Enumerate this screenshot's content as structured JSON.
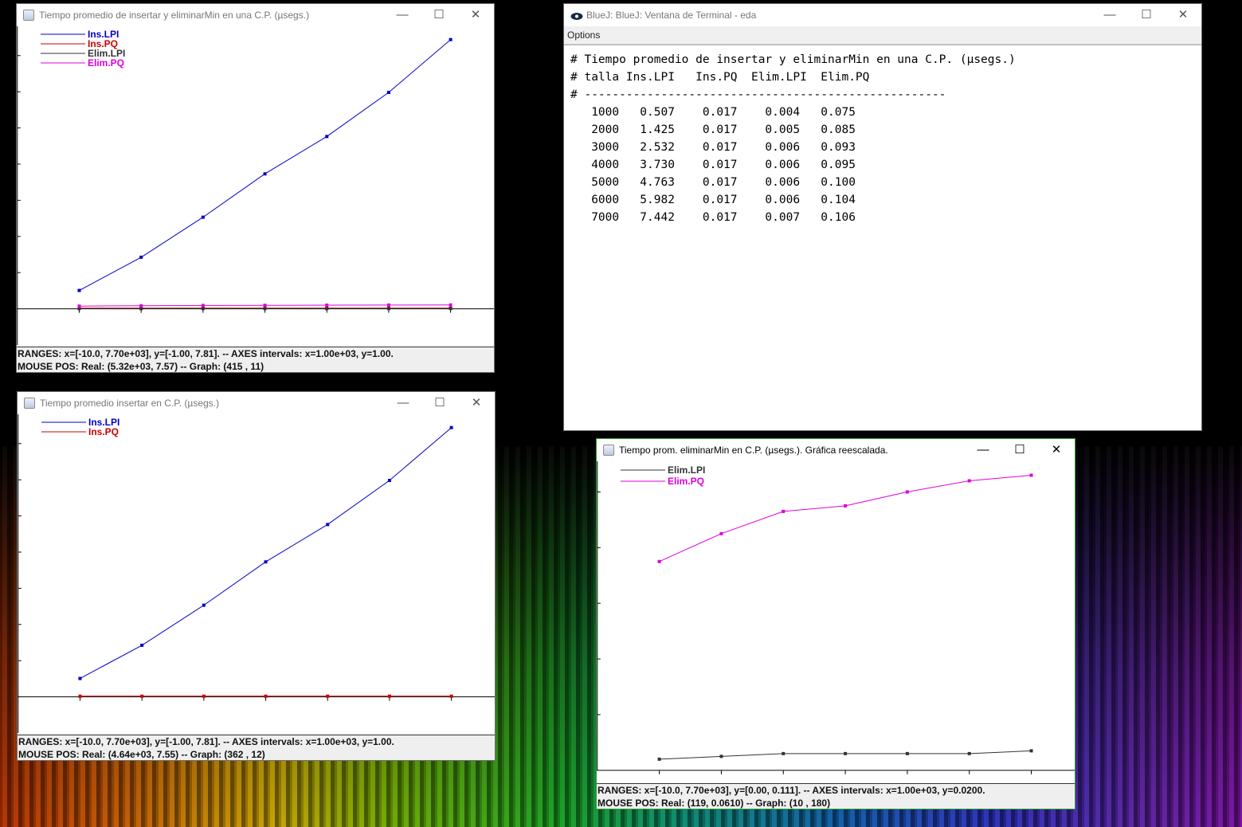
{
  "win1": {
    "title": "Tiempo promedio de insertar y eliminarMin en una C.P. (µsegs.)",
    "legend": [
      {
        "name": "Ins.LPI",
        "color": "#0000cc"
      },
      {
        "name": "Ins.PQ",
        "color": "#cc0000"
      },
      {
        "name": "Elim.LPI",
        "color": "#333333"
      },
      {
        "name": "Elim.PQ",
        "color": "#dd00dd"
      }
    ],
    "status_line1": "RANGES: x=[-10.0, 7.70e+03],  y=[-1.00, 7.81]. -- AXES intervals: x=1.00e+03, y=1.00.",
    "status_line2": "MOUSE POS:  Real: (5.32e+03, 7.57)  --  Graph: (415 , 11)"
  },
  "win2": {
    "title": "Tiempo promedio insertar en C.P. (µsegs.)",
    "legend": [
      {
        "name": "Ins.LPI",
        "color": "#0000cc"
      },
      {
        "name": "Ins.PQ",
        "color": "#cc0000"
      }
    ],
    "status_line1": "RANGES: x=[-10.0, 7.70e+03],  y=[-1.00, 7.81]. -- AXES intervals: x=1.00e+03, y=1.00.",
    "status_line2": "MOUSE POS:  Real: (4.64e+03, 7.55)  --  Graph: (362 , 12)"
  },
  "win3": {
    "title": "BlueJ: BlueJ:  Ventana de Terminal - eda",
    "menu_options": "Options",
    "lines": [
      "# Tiempo promedio de insertar y eliminarMin en una C.P. (µsegs.)",
      "# talla Ins.LPI   Ins.PQ  Elim.LPI  Elim.PQ",
      "# ----------------------------------------------------",
      "   1000   0.507    0.017    0.004   0.075",
      "   2000   1.425    0.017    0.005   0.085",
      "   3000   2.532    0.017    0.006   0.093",
      "   4000   3.730    0.017    0.006   0.095",
      "   5000   4.763    0.017    0.006   0.100",
      "   6000   5.982    0.017    0.006   0.104",
      "   7000   7.442    0.017    0.007   0.106"
    ]
  },
  "win4": {
    "title": "Tiempo prom. eliminarMin en C.P. (µsegs.). Gráfica reescalada.",
    "legend": [
      {
        "name": "Elim.LPI",
        "color": "#333333"
      },
      {
        "name": "Elim.PQ",
        "color": "#dd00dd"
      }
    ],
    "status_line1": "RANGES: x=[-10.0, 7.70e+03],  y=[0.00, 0.111]. -- AXES intervals: x=1.00e+03, y=0.0200.",
    "status_line2": "MOUSE POS:  Real: (119, 0.0610)  --  Graph: (10 , 180)"
  },
  "chart_data": [
    {
      "type": "line",
      "x": [
        1000,
        2000,
        3000,
        4000,
        5000,
        6000,
        7000
      ],
      "xlim": [
        -10.0,
        7700
      ],
      "ylim": [
        -1.0,
        7.81
      ],
      "x_interval": 1000,
      "y_interval": 1.0,
      "series": [
        {
          "name": "Ins.LPI",
          "color": "#0000cc",
          "values": [
            0.507,
            1.425,
            2.532,
            3.73,
            4.763,
            5.982,
            7.442
          ]
        },
        {
          "name": "Ins.PQ",
          "color": "#cc0000",
          "values": [
            0.017,
            0.017,
            0.017,
            0.017,
            0.017,
            0.017,
            0.017
          ]
        },
        {
          "name": "Elim.LPI",
          "color": "#333333",
          "values": [
            0.004,
            0.005,
            0.006,
            0.006,
            0.006,
            0.006,
            0.007
          ]
        },
        {
          "name": "Elim.PQ",
          "color": "#dd00dd",
          "values": [
            0.075,
            0.085,
            0.093,
            0.095,
            0.1,
            0.104,
            0.106
          ]
        }
      ]
    },
    {
      "type": "line",
      "x": [
        1000,
        2000,
        3000,
        4000,
        5000,
        6000,
        7000
      ],
      "xlim": [
        -10.0,
        7700
      ],
      "ylim": [
        -1.0,
        7.81
      ],
      "x_interval": 1000,
      "y_interval": 1.0,
      "series": [
        {
          "name": "Ins.LPI",
          "color": "#0000cc",
          "values": [
            0.507,
            1.425,
            2.532,
            3.73,
            4.763,
            5.982,
            7.442
          ]
        },
        {
          "name": "Ins.PQ",
          "color": "#cc0000",
          "values": [
            0.017,
            0.017,
            0.017,
            0.017,
            0.017,
            0.017,
            0.017
          ]
        }
      ]
    },
    {
      "type": "line",
      "x": [
        1000,
        2000,
        3000,
        4000,
        5000,
        6000,
        7000
      ],
      "xlim": [
        -10.0,
        7700
      ],
      "ylim": [
        0.0,
        0.111
      ],
      "x_interval": 1000,
      "y_interval": 0.02,
      "series": [
        {
          "name": "Elim.LPI",
          "color": "#333333",
          "values": [
            0.004,
            0.005,
            0.006,
            0.006,
            0.006,
            0.006,
            0.007
          ]
        },
        {
          "name": "Elim.PQ",
          "color": "#dd00dd",
          "values": [
            0.075,
            0.085,
            0.093,
            0.095,
            0.1,
            0.104,
            0.106
          ]
        }
      ]
    }
  ]
}
